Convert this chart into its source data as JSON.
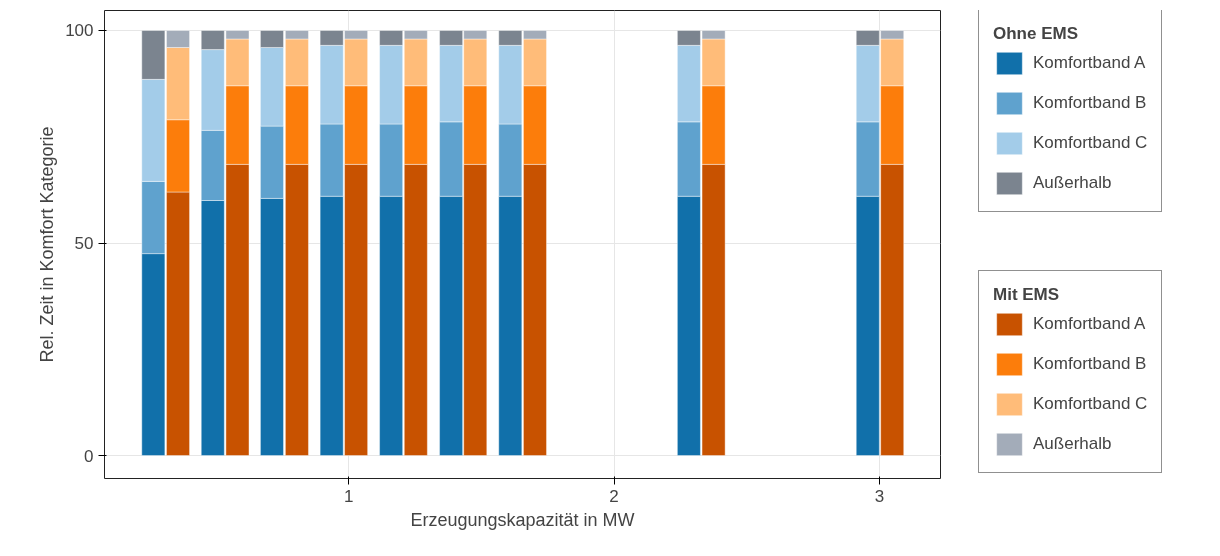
{
  "chart_data": {
    "type": "bar",
    "xlabel": "Erzeugungskapazität in MW",
    "ylabel": "Rel. Zeit in Komfort Kategorie",
    "legend_title": [
      "Ohne EMS",
      "Mit EMS"
    ],
    "legend": "right",
    "grid": true,
    "xlim": [
      0.08,
      3.23
    ],
    "xticks": [
      1,
      2,
      3
    ],
    "ylim": [
      -5.4,
      104.7
    ],
    "yticks": [
      0,
      50,
      100
    ],
    "series": [
      {
        "name": "Komfortband A",
        "color": "#1170aa",
        "x": [
          0.264,
          0.488,
          0.711,
          0.936,
          1.16,
          1.386,
          1.609,
          2.282,
          2.956
        ],
        "base": [
          0,
          0,
          0,
          0,
          0,
          0,
          0,
          0,
          0
        ],
        "values": [
          47.5,
          60,
          60.5,
          61,
          61,
          61,
          61,
          61,
          61
        ]
      },
      {
        "name": "Komfortband B",
        "color": "#5fa2ce",
        "x": [
          0.264,
          0.488,
          0.711,
          0.936,
          1.16,
          1.386,
          1.609,
          2.282,
          2.956
        ],
        "base": [
          47.5,
          60,
          60.5,
          61,
          61,
          61,
          61,
          61,
          61
        ],
        "values": [
          17,
          16.5,
          17,
          17,
          17,
          17.5,
          17,
          17.5,
          17.5
        ]
      },
      {
        "name": "Komfortband C",
        "color": "#a3cce9",
        "x": [
          0.264,
          0.488,
          0.711,
          0.936,
          1.16,
          1.386,
          1.609,
          2.282,
          2.956
        ],
        "base": [
          64.5,
          76.5,
          77.5,
          78,
          78,
          78.5,
          78,
          78.5,
          78.5
        ],
        "values": [
          24,
          19,
          18.5,
          18.5,
          18.5,
          18,
          18.5,
          18,
          18
        ]
      },
      {
        "name": "Außerhalb",
        "color": "#7b848f",
        "x": [
          0.264,
          0.488,
          0.711,
          0.936,
          1.16,
          1.386,
          1.609,
          2.282,
          2.956
        ],
        "base": [
          88.5,
          95.5,
          96,
          96.5,
          96.5,
          96.5,
          96.5,
          96.5,
          96.5
        ],
        "values": [
          11.5,
          4.5,
          4,
          3.5,
          3.5,
          3.5,
          3.5,
          3.5,
          3.5
        ]
      },
      {
        "name": "Komfortband A",
        "color": "#c85200",
        "x": [
          0.357,
          0.581,
          0.805,
          1.028,
          1.253,
          1.477,
          1.702,
          2.375,
          3.048
        ],
        "base": [
          0,
          0,
          0,
          0,
          0,
          0,
          0,
          0,
          0
        ],
        "values": [
          62,
          68.5,
          68.5,
          68.5,
          68.5,
          68.5,
          68.5,
          68.5,
          68.5
        ]
      },
      {
        "name": "Komfortband B",
        "color": "#fc7d0b",
        "x": [
          0.357,
          0.581,
          0.805,
          1.028,
          1.253,
          1.477,
          1.702,
          2.375,
          3.048
        ],
        "base": [
          62,
          68.5,
          68.5,
          68.5,
          68.5,
          68.5,
          68.5,
          68.5,
          68.5
        ],
        "values": [
          17,
          18.5,
          18.5,
          18.5,
          18.5,
          18.5,
          18.5,
          18.5,
          18.5
        ]
      },
      {
        "name": "Komfortband C",
        "color": "#ffbc79",
        "x": [
          0.357,
          0.581,
          0.805,
          1.028,
          1.253,
          1.477,
          1.702,
          2.375,
          3.048
        ],
        "base": [
          79,
          87,
          87,
          87,
          87,
          87,
          87,
          87,
          87
        ],
        "values": [
          17,
          11,
          11,
          11,
          11,
          11,
          11,
          11,
          11
        ]
      },
      {
        "name": "Außerhalb",
        "color": "#a3acb9",
        "x": [
          0.357,
          0.581,
          0.805,
          1.028,
          1.253,
          1.477,
          1.702,
          2.375,
          3.048
        ],
        "base": [
          96,
          98,
          98,
          98,
          98,
          98,
          98,
          98,
          98
        ],
        "values": [
          4,
          2,
          2,
          2,
          2,
          2,
          2,
          2,
          2
        ]
      }
    ]
  }
}
